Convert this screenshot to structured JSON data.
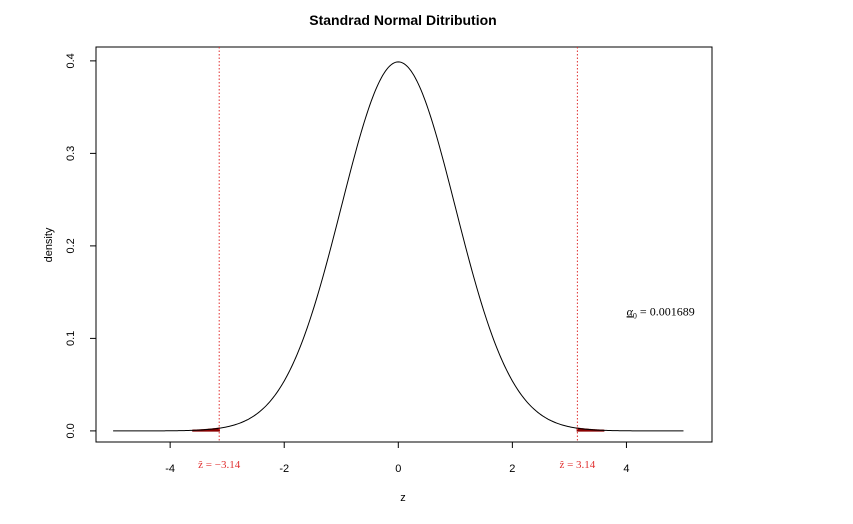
{
  "chart_data": {
    "type": "line",
    "title": "Standrad Normal Ditribution",
    "xlabel": "z",
    "ylabel": "density",
    "xlim": [
      -5.3,
      5.5
    ],
    "ylim": [
      -0.012,
      0.415
    ],
    "x_ticks": [
      -4,
      -2,
      0,
      2,
      4
    ],
    "x_tick_labels": [
      "-4",
      "-2",
      "0",
      "2",
      "4"
    ],
    "y_ticks": [
      0.0,
      0.1,
      0.2,
      0.3,
      0.4
    ],
    "y_tick_labels": [
      "0.0",
      "0.1",
      "0.2",
      "0.3",
      "0.4"
    ],
    "grid": false,
    "series": [
      {
        "distribution": "standard normal",
        "mean": 0,
        "sd": 1,
        "x_range": [
          -5,
          5
        ],
        "color": "#000000"
      }
    ],
    "critical_lines": [
      {
        "x": -3.14,
        "label": "ẑ = −3.14",
        "color": "#e03030",
        "style": "dotted"
      },
      {
        "x": 3.14,
        "label": "ẑ = 3.14",
        "color": "#e03030",
        "style": "dotted"
      }
    ],
    "shaded_tails": {
      "left_range": [
        -3.6,
        -3.14
      ],
      "right_range": [
        3.14,
        3.6
      ],
      "color": "#8b0000"
    },
    "annotations": [
      {
        "text_symbol": "α",
        "text_subscript": "0",
        "text_value": " = 0.001689",
        "x": 4.6,
        "y": 0.125
      }
    ]
  }
}
